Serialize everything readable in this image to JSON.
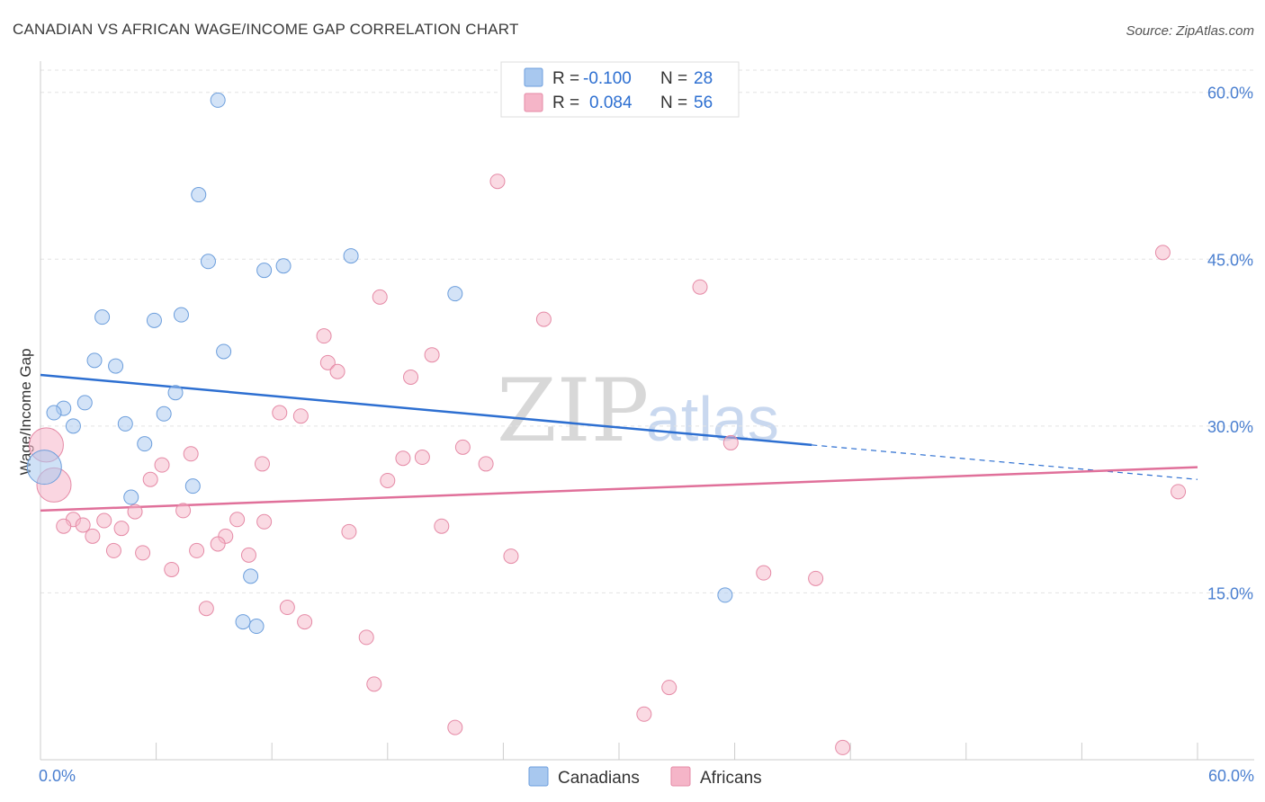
{
  "chart_data": {
    "type": "scatter",
    "title": "CANADIAN VS AFRICAN WAGE/INCOME GAP CORRELATION CHART",
    "source": "Source: ZipAtlas.com",
    "xlabel": "",
    "ylabel": "Wage/Income Gap",
    "xlim": [
      0,
      60
    ],
    "ylim": [
      0,
      62
    ],
    "x_tick_labels": [
      "0.0%",
      "60.0%"
    ],
    "y_ticks": [
      15,
      30,
      45,
      60
    ],
    "y_tick_labels": [
      "15.0%",
      "30.0%",
      "45.0%",
      "60.0%"
    ],
    "grid": true,
    "watermark": {
      "zip": "ZIP",
      "atlas": "atlas"
    },
    "legend": {
      "stats": [
        {
          "r_label": "R =",
          "r_value": "-0.100",
          "n_label": "N =",
          "n_value": "28",
          "color": "#a8c8ef"
        },
        {
          "r_label": "R =",
          "r_value": "0.084",
          "n_label": "N =",
          "n_value": "56",
          "color": "#f5b5c8"
        }
      ],
      "bottom": [
        "Canadians",
        "Africans"
      ]
    },
    "series": [
      {
        "name": "Canadians",
        "fill": "#a8c8ef",
        "stroke": "#6c9edc",
        "trend": {
          "x": [
            0,
            40,
            60
          ],
          "y": [
            34.6,
            28.3,
            25.2
          ],
          "solid_until": 40,
          "color": "#2d6fd1"
        },
        "points": [
          {
            "x": 9.2,
            "y": 59.3
          },
          {
            "x": 8.2,
            "y": 50.8
          },
          {
            "x": 8.7,
            "y": 44.8
          },
          {
            "x": 11.6,
            "y": 44.0
          },
          {
            "x": 12.6,
            "y": 44.4
          },
          {
            "x": 16.1,
            "y": 45.3
          },
          {
            "x": 21.5,
            "y": 41.9
          },
          {
            "x": 3.2,
            "y": 39.8
          },
          {
            "x": 5.9,
            "y": 39.5
          },
          {
            "x": 7.3,
            "y": 40.0
          },
          {
            "x": 9.5,
            "y": 36.7
          },
          {
            "x": 2.8,
            "y": 35.9
          },
          {
            "x": 3.9,
            "y": 35.4
          },
          {
            "x": 7.0,
            "y": 33.0
          },
          {
            "x": 2.3,
            "y": 32.1
          },
          {
            "x": 1.2,
            "y": 31.6
          },
          {
            "x": 0.7,
            "y": 31.2
          },
          {
            "x": 6.4,
            "y": 31.1
          },
          {
            "x": 1.7,
            "y": 30.0
          },
          {
            "x": 4.4,
            "y": 30.2
          },
          {
            "x": 5.4,
            "y": 28.4
          },
          {
            "x": 0.2,
            "y": 26.3,
            "size": "large"
          },
          {
            "x": 7.9,
            "y": 24.6
          },
          {
            "x": 4.7,
            "y": 23.6
          },
          {
            "x": 10.9,
            "y": 16.5
          },
          {
            "x": 35.5,
            "y": 14.8
          },
          {
            "x": 10.5,
            "y": 12.4
          },
          {
            "x": 11.2,
            "y": 12.0
          }
        ]
      },
      {
        "name": "Africans",
        "fill": "#f5b5c8",
        "stroke": "#e58aa6",
        "trend": {
          "x": [
            0,
            60
          ],
          "y": [
            22.4,
            26.3
          ],
          "color": "#e0709a"
        },
        "points": [
          {
            "x": 23.7,
            "y": 52.0
          },
          {
            "x": 58.2,
            "y": 45.6
          },
          {
            "x": 34.2,
            "y": 42.5
          },
          {
            "x": 17.6,
            "y": 41.6
          },
          {
            "x": 26.1,
            "y": 39.6
          },
          {
            "x": 14.7,
            "y": 38.1
          },
          {
            "x": 20.3,
            "y": 36.4
          },
          {
            "x": 14.9,
            "y": 35.7
          },
          {
            "x": 15.4,
            "y": 34.9
          },
          {
            "x": 19.2,
            "y": 34.4
          },
          {
            "x": 12.4,
            "y": 31.2
          },
          {
            "x": 13.5,
            "y": 30.9
          },
          {
            "x": 0.3,
            "y": 28.3,
            "size": "large"
          },
          {
            "x": 21.9,
            "y": 28.1
          },
          {
            "x": 35.8,
            "y": 28.5
          },
          {
            "x": 7.8,
            "y": 27.5
          },
          {
            "x": 18.8,
            "y": 27.1
          },
          {
            "x": 19.8,
            "y": 27.2
          },
          {
            "x": 23.1,
            "y": 26.6
          },
          {
            "x": 6.3,
            "y": 26.5
          },
          {
            "x": 11.5,
            "y": 26.6
          },
          {
            "x": 5.7,
            "y": 25.2
          },
          {
            "x": 18.0,
            "y": 25.1
          },
          {
            "x": 0.7,
            "y": 24.7,
            "size": "large"
          },
          {
            "x": 59.0,
            "y": 24.1
          },
          {
            "x": 7.4,
            "y": 22.4
          },
          {
            "x": 4.9,
            "y": 22.3
          },
          {
            "x": 1.7,
            "y": 21.6
          },
          {
            "x": 3.3,
            "y": 21.5
          },
          {
            "x": 10.2,
            "y": 21.6
          },
          {
            "x": 11.6,
            "y": 21.4
          },
          {
            "x": 1.2,
            "y": 21.0
          },
          {
            "x": 2.2,
            "y": 21.1
          },
          {
            "x": 4.2,
            "y": 20.8
          },
          {
            "x": 20.8,
            "y": 21.0
          },
          {
            "x": 16.0,
            "y": 20.5
          },
          {
            "x": 9.6,
            "y": 20.1
          },
          {
            "x": 2.7,
            "y": 20.1
          },
          {
            "x": 9.2,
            "y": 19.4
          },
          {
            "x": 3.8,
            "y": 18.8
          },
          {
            "x": 5.3,
            "y": 18.6
          },
          {
            "x": 8.1,
            "y": 18.8
          },
          {
            "x": 10.8,
            "y": 18.4
          },
          {
            "x": 24.4,
            "y": 18.3
          },
          {
            "x": 6.8,
            "y": 17.1
          },
          {
            "x": 37.5,
            "y": 16.8
          },
          {
            "x": 40.2,
            "y": 16.3
          },
          {
            "x": 8.6,
            "y": 13.6
          },
          {
            "x": 12.8,
            "y": 13.7
          },
          {
            "x": 13.7,
            "y": 12.4
          },
          {
            "x": 16.9,
            "y": 11.0
          },
          {
            "x": 17.3,
            "y": 6.8
          },
          {
            "x": 32.6,
            "y": 6.5
          },
          {
            "x": 31.3,
            "y": 4.1
          },
          {
            "x": 21.5,
            "y": 2.9
          },
          {
            "x": 41.6,
            "y": 1.1
          }
        ]
      }
    ]
  }
}
